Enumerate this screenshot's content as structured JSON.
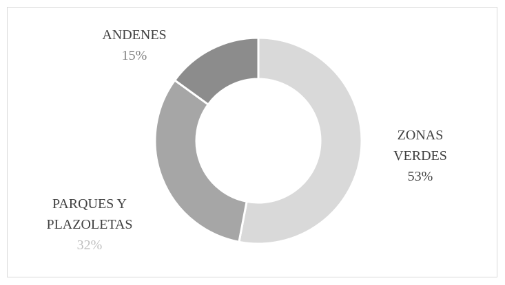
{
  "chart_data": {
    "type": "donut",
    "categories": [
      "ZONAS VERDES",
      "PARQUES Y PLAZOLETAS",
      "ANDENES"
    ],
    "values": [
      53,
      32,
      15
    ],
    "value_labels": [
      "53%",
      "32%",
      "15%"
    ],
    "colors": [
      "#d9d9d9",
      "#a6a6a6",
      "#8c8c8c"
    ]
  }
}
